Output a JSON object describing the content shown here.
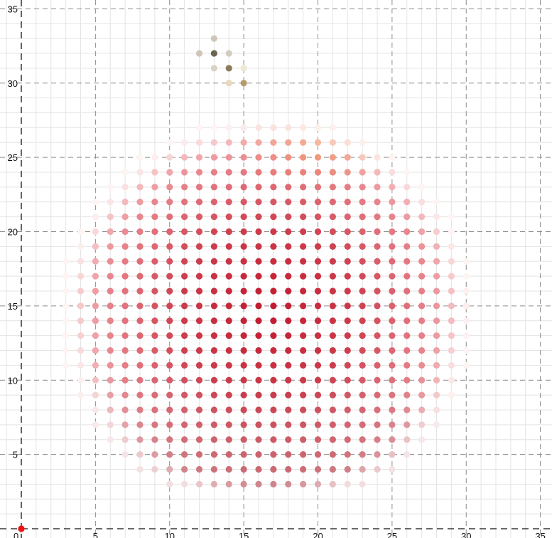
{
  "chart_data": {
    "type": "scatter",
    "title": "",
    "xlabel": "",
    "ylabel": "",
    "xlim": [
      0,
      37
    ],
    "ylim": [
      0,
      35.5
    ],
    "grid": true,
    "minor_step": 1,
    "major_step": 5,
    "x_ticks": [
      "0",
      "5",
      "10",
      "15",
      "20",
      "25",
      "30",
      "35"
    ],
    "y_ticks": [
      "5",
      "10",
      "15",
      "20",
      "25",
      "30",
      "35"
    ],
    "origin_point": {
      "x": 0,
      "y": 0,
      "color": "#ee1111"
    },
    "colors": {
      "apple_light": "#fbdada",
      "apple_mid": "#e9858d",
      "apple_deep": "#c0172c",
      "apple_shadow": "#a33f4c",
      "highlight": "#f19a62",
      "stem": "#6b6450",
      "stem_light": "#d6d0c0"
    },
    "series": [
      {
        "type": "stem",
        "points": [
          {
            "x": 13,
            "y": 33,
            "color": "#cfc6b8"
          },
          {
            "x": 12,
            "y": 32,
            "color": "#cfc6b8"
          },
          {
            "x": 13,
            "y": 32,
            "color": "#6b6450"
          },
          {
            "x": 14,
            "y": 32,
            "color": "#d3cdc0"
          },
          {
            "x": 13,
            "y": 31,
            "color": "#d8d3c4"
          },
          {
            "x": 14,
            "y": 31,
            "color": "#8a7c5a"
          },
          {
            "x": 15,
            "y": 31,
            "color": "#efe8d2"
          },
          {
            "x": 14,
            "y": 30,
            "color": "#e9d9bb"
          },
          {
            "x": 15,
            "y": 30,
            "color": "#b89b6a"
          }
        ]
      }
    ]
  }
}
